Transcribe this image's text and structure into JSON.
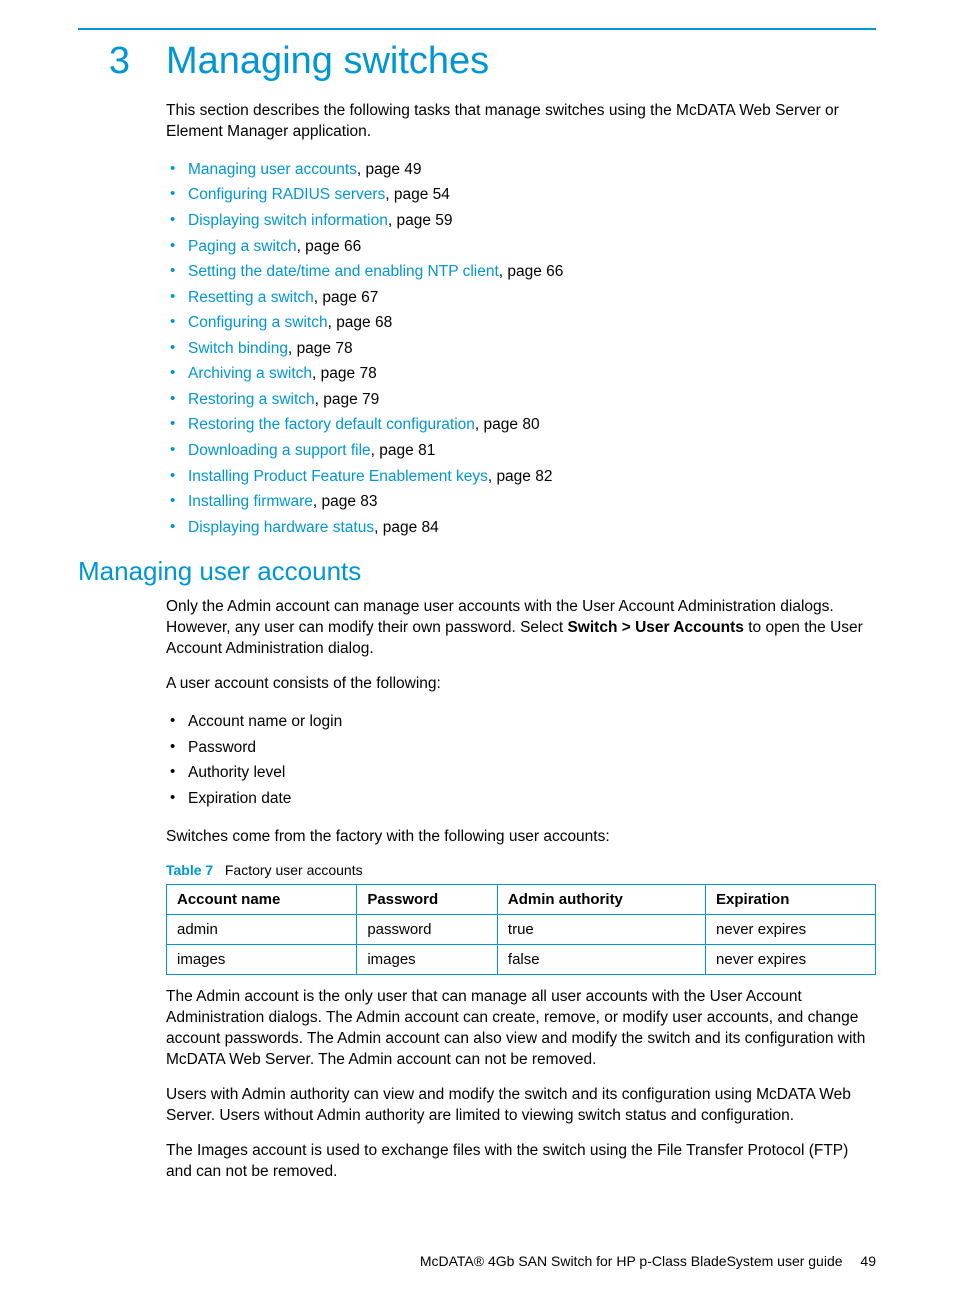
{
  "colors": {
    "accent": "#0096d6",
    "text": "#000000",
    "background": "#ffffff"
  },
  "chapter": {
    "number": "3",
    "title": "Managing switches"
  },
  "intro": "This section describes the following tasks that manage switches using the McDATA Web Server or Element Manager application.",
  "toc": [
    {
      "label": "Managing user accounts",
      "page": "49"
    },
    {
      "label": "Configuring RADIUS servers",
      "page": "54"
    },
    {
      "label": "Displaying switch information",
      "page": "59"
    },
    {
      "label": "Paging a switch",
      "page": "66"
    },
    {
      "label": "Setting the date/time and enabling NTP client",
      "page": "66"
    },
    {
      "label": "Resetting a switch",
      "page": "67"
    },
    {
      "label": "Configuring a switch",
      "page": "68"
    },
    {
      "label": "Switch binding",
      "page": "78"
    },
    {
      "label": "Archiving a switch",
      "page": "78"
    },
    {
      "label": "Restoring a switch",
      "page": "79"
    },
    {
      "label": "Restoring the factory default configuration",
      "page": "80"
    },
    {
      "label": "Downloading a support file",
      "page": "81"
    },
    {
      "label": "Installing Product Feature Enablement keys",
      "page": "82"
    },
    {
      "label": "Installing firmware",
      "page": "83"
    },
    {
      "label": "Displaying hardware status",
      "page": "84"
    }
  ],
  "page_sep": ", page ",
  "section": {
    "title": "Managing user accounts",
    "p1a": "Only the Admin account can manage user accounts with the User Account Administration dialogs. However, any user can modify their own password. Select ",
    "p1b": "Switch > User Accounts",
    "p1c": " to open the User Account Administration dialog.",
    "p2": "A user account consists of the following:",
    "components": [
      "Account name or login",
      "Password",
      "Authority level",
      "Expiration date"
    ],
    "p3": "Switches come from the factory with the following user accounts:",
    "table": {
      "caption_label": "Table 7",
      "caption_text": "Factory user accounts",
      "columns": [
        "Account name",
        "Password",
        "Admin authority",
        "Expiration"
      ],
      "rows": [
        [
          "admin",
          "password",
          "true",
          "never expires"
        ],
        [
          "images",
          "images",
          "false",
          "never expires"
        ]
      ],
      "border_color": "#0096d6"
    },
    "p4": "The Admin account is the only user that can manage all user accounts with the User Account Administration dialogs. The Admin account can create, remove, or modify user accounts, and change account passwords. The Admin account can also view and modify the switch and its configuration with McDATA Web Server. The Admin account can not be removed.",
    "p5": "Users with Admin authority can view and modify the switch and its configuration using McDATA Web Server. Users without Admin authority are limited to viewing switch status and configuration.",
    "p6": "The Images account is used to exchange files with the switch using the File Transfer Protocol (FTP) and can not be removed."
  },
  "footer": {
    "title": "McDATA® 4Gb SAN Switch for HP p-Class BladeSystem user guide",
    "page": "49"
  }
}
